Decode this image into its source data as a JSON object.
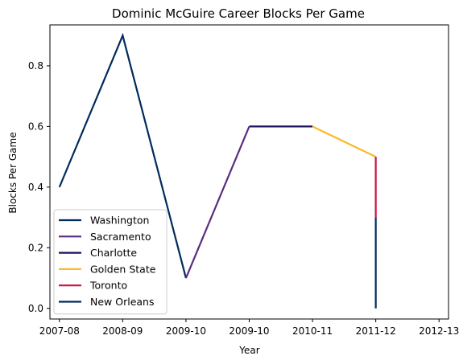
{
  "chart_data": {
    "type": "line",
    "title": "Dominic McGuire Career Blocks Per Game",
    "xlabel": "Year",
    "ylabel": "Blocks Per Game",
    "x_ticks": [
      "2007-08",
      "2008-09",
      "2009-10",
      "2009-10",
      "2010-11",
      "2011-12",
      "2012-13"
    ],
    "y_ticks": [
      "0.0",
      "0.2",
      "0.4",
      "0.6",
      "0.8"
    ],
    "ylim": [
      -0.035,
      0.935
    ],
    "xlim": [
      -0.15,
      6.15
    ],
    "grid": false,
    "legend_position": "lower-left",
    "series": [
      {
        "name": "Washington",
        "color": "#002b5c",
        "points": [
          {
            "x": 0,
            "y": 0.4
          },
          {
            "x": 1,
            "y": 0.9
          },
          {
            "x": 2,
            "y": 0.1
          }
        ]
      },
      {
        "name": "Sacramento",
        "color": "#5a2d81",
        "points": [
          {
            "x": 2,
            "y": 0.1
          },
          {
            "x": 3,
            "y": 0.6
          }
        ]
      },
      {
        "name": "Charlotte",
        "color": "#1d1160",
        "points": [
          {
            "x": 3,
            "y": 0.6
          },
          {
            "x": 4,
            "y": 0.6
          }
        ]
      },
      {
        "name": "Golden State",
        "color": "#fdb927",
        "points": [
          {
            "x": 4,
            "y": 0.6
          },
          {
            "x": 5,
            "y": 0.5
          }
        ]
      },
      {
        "name": "Toronto",
        "color": "#ce1141",
        "points": [
          {
            "x": 5,
            "y": 0.5
          },
          {
            "x": 5,
            "y": 0.3
          }
        ]
      },
      {
        "name": "New Orleans",
        "color": "#002b5c",
        "points": [
          {
            "x": 5,
            "y": 0.3
          },
          {
            "x": 5,
            "y": 0.0
          }
        ]
      }
    ]
  }
}
